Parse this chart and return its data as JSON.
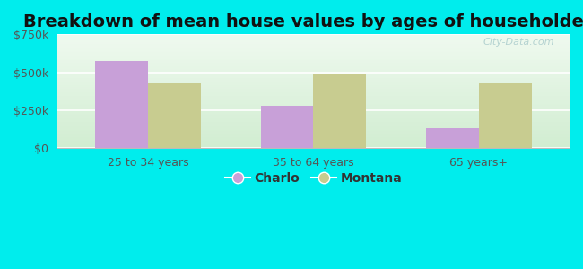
{
  "title": "Breakdown of mean house values by ages of householders",
  "categories": [
    "25 to 34 years",
    "35 to 64 years",
    "65 years+"
  ],
  "charlo_values": [
    575000,
    280000,
    130000
  ],
  "montana_values": [
    425000,
    490000,
    425000
  ],
  "ylim": [
    0,
    750000
  ],
  "yticks": [
    0,
    250000,
    500000,
    750000
  ],
  "ytick_labels": [
    "$0",
    "$250k",
    "$500k",
    "$750k"
  ],
  "legend_labels": [
    "Charlo",
    "Montana"
  ],
  "charlo_color": "#c8a0d8",
  "montana_color": "#c8cc90",
  "background_color": "#00eded",
  "plot_bg_color": "#e8f5e8",
  "title_fontsize": 14,
  "bar_width": 0.32,
  "watermark": "City-Data.com"
}
